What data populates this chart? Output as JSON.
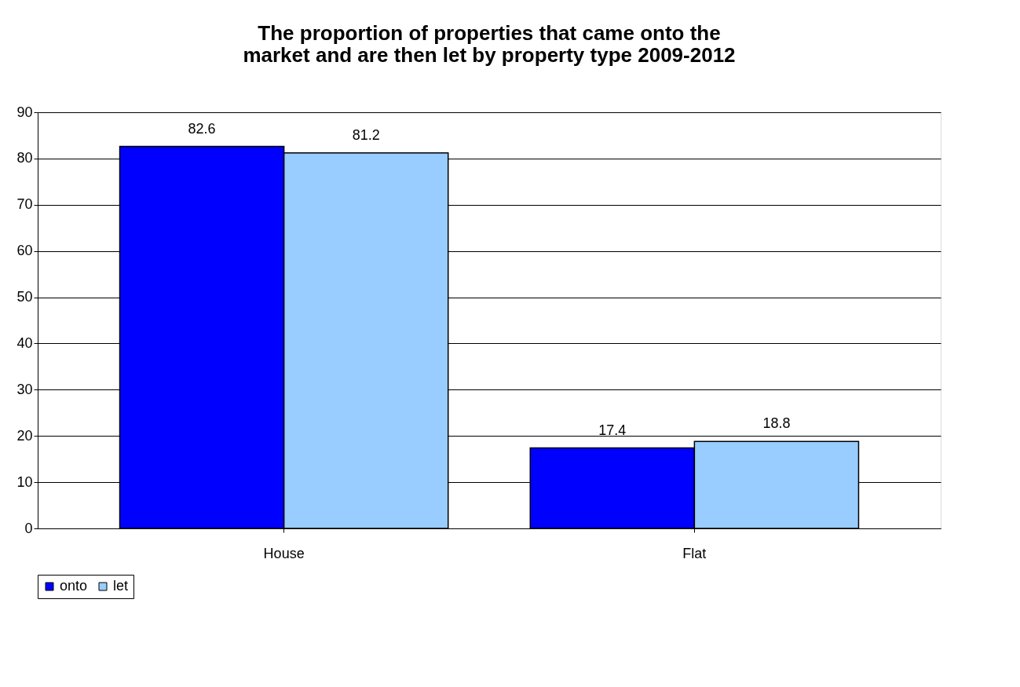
{
  "chart_data": {
    "type": "bar",
    "title": [
      "The proportion of properties that came onto the",
      "market and are then let by property type 2009-2012"
    ],
    "categories": [
      "House",
      "Flat"
    ],
    "series": [
      {
        "name": "onto",
        "color": "#0000ff",
        "values": [
          82.6,
          17.4
        ]
      },
      {
        "name": "let",
        "color": "#99ccff",
        "values": [
          81.2,
          18.8
        ]
      }
    ],
    "ylim": [
      0,
      90
    ],
    "yticks": [
      0,
      10,
      20,
      30,
      40,
      50,
      60,
      70,
      80,
      90
    ],
    "grid": "y",
    "legend": "bottom",
    "data_labels": true
  }
}
